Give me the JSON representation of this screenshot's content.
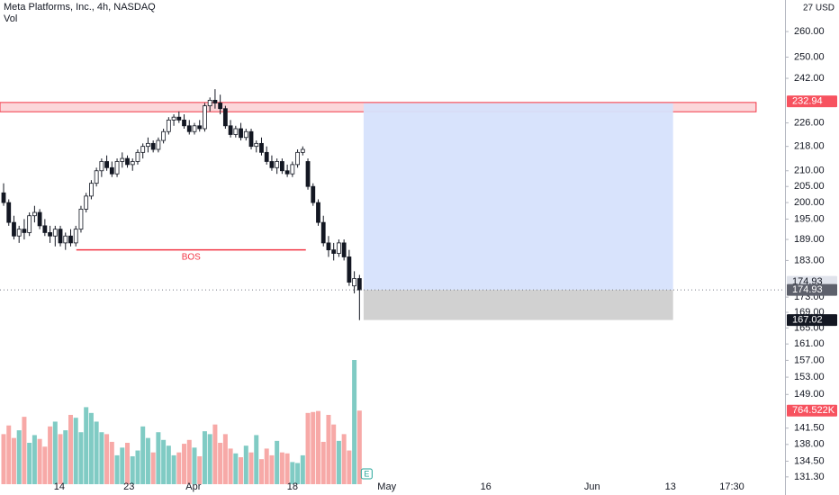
{
  "chart_data": {
    "type": "candlestick",
    "title": "Meta Platforms, Inc., 4h, NASDAQ",
    "volume_title": "Vol",
    "currency": "27 USD",
    "log_scale": true,
    "ylim": [
      127.7,
      272.9
    ],
    "yticks": [
      {
        "value": 260,
        "label": "260.00"
      },
      {
        "value": 250,
        "label": "250.00"
      },
      {
        "value": 242,
        "label": "242.00"
      },
      {
        "value": 226,
        "label": "226.00"
      },
      {
        "value": 218,
        "label": "218.00"
      },
      {
        "value": 210,
        "label": "210.00"
      },
      {
        "value": 205,
        "label": "205.00"
      },
      {
        "value": 200,
        "label": "200.00"
      },
      {
        "value": 195,
        "label": "195.00"
      },
      {
        "value": 189,
        "label": "189.00"
      },
      {
        "value": 183,
        "label": "183.00"
      },
      {
        "value": 173,
        "label": "173.00"
      },
      {
        "value": 169,
        "label": "169.00"
      },
      {
        "value": 165,
        "label": "165.00"
      },
      {
        "value": 161,
        "label": "161.00"
      },
      {
        "value": 157,
        "label": "157.00"
      },
      {
        "value": 153,
        "label": "153.00"
      },
      {
        "value": 149,
        "label": "149.00"
      },
      {
        "value": 141.5,
        "label": "141.50"
      },
      {
        "value": 138,
        "label": "138.00"
      },
      {
        "value": 134.5,
        "label": "134.50"
      },
      {
        "value": 131.3,
        "label": "131.30"
      }
    ],
    "xlim": [
      -0.7,
      151.5
    ],
    "xticks": [
      {
        "value": 10.8,
        "label": "14"
      },
      {
        "value": 24.3,
        "label": "23"
      },
      {
        "value": 36.8,
        "label": "Apr"
      },
      {
        "value": 56,
        "label": "18"
      },
      {
        "value": 74.3,
        "label": "May"
      },
      {
        "value": 93.5,
        "label": "16"
      },
      {
        "value": 114.1,
        "label": "Jun"
      },
      {
        "value": 129.3,
        "label": "13"
      },
      {
        "value": 141.2,
        "label": "17:30"
      }
    ],
    "candles": {
      "open": [
        203,
        200,
        194,
        190,
        192,
        191,
        196,
        197,
        193,
        191,
        190,
        192,
        188,
        190,
        188,
        192,
        198,
        202,
        206,
        210,
        213,
        211,
        209,
        213,
        214,
        212,
        213,
        216,
        218,
        219,
        217,
        220,
        223,
        227,
        228,
        227,
        225,
        223,
        225,
        224,
        232,
        234,
        233,
        231,
        225,
        222,
        224,
        221,
        223,
        218,
        219,
        216,
        213,
        211,
        213,
        210,
        209,
        212,
        216,
        213,
        205,
        200,
        194,
        188,
        186,
        185,
        188,
        184,
        176,
        178
      ],
      "high": [
        206,
        201,
        196,
        193,
        195,
        197,
        199,
        198,
        195,
        193,
        193,
        193,
        191,
        192,
        193,
        199,
        203,
        207,
        211,
        214,
        215,
        213,
        214,
        216,
        215,
        214,
        217,
        219,
        221,
        220,
        221,
        224,
        228,
        229,
        230,
        229,
        227,
        226,
        227,
        233,
        235,
        238,
        236,
        232,
        227,
        225,
        226,
        224,
        224,
        220,
        221,
        218,
        215,
        214,
        214,
        212,
        213,
        217,
        218,
        214,
        206,
        201,
        196,
        190,
        188,
        189,
        189,
        186,
        180,
        179
      ],
      "low": [
        199,
        193,
        189,
        188,
        189,
        190,
        194,
        192,
        190,
        188,
        187,
        187,
        186,
        187,
        187,
        191,
        197,
        201,
        205,
        208,
        210,
        208,
        208,
        211,
        211,
        210,
        212,
        214,
        216,
        216,
        216,
        219,
        222,
        225,
        226,
        224,
        222,
        222,
        223,
        223,
        230,
        231,
        229,
        224,
        221,
        221,
        220,
        220,
        217,
        216,
        215,
        212,
        210,
        209,
        209,
        208,
        208,
        211,
        215,
        204,
        199,
        193,
        187,
        184,
        183,
        184,
        183,
        176,
        174,
        167
      ],
      "close": [
        200,
        194,
        190,
        192,
        191,
        196,
        197,
        193,
        191,
        190,
        192,
        188,
        190,
        188,
        192,
        198,
        202,
        206,
        210,
        213,
        211,
        209,
        213,
        214,
        212,
        213,
        216,
        218,
        219,
        217,
        220,
        223,
        227,
        228,
        227,
        225,
        223,
        225,
        224,
        232,
        234,
        233,
        231,
        225,
        222,
        224,
        221,
        223,
        218,
        219,
        216,
        213,
        211,
        213,
        210,
        209,
        212,
        216,
        217,
        205,
        200,
        194,
        188,
        186,
        185,
        188,
        184,
        177,
        178,
        174.93
      ]
    },
    "up_color": "#ffffff",
    "down_color": "#131722",
    "wick_color": "#131722",
    "volume": {
      "values": [
        520000,
        610000,
        480000,
        560000,
        700000,
        430000,
        510000,
        470000,
        390000,
        600000,
        650000,
        520000,
        560000,
        720000,
        690000,
        540000,
        800000,
        740000,
        650000,
        540000,
        520000,
        440000,
        300000,
        380000,
        430000,
        290000,
        350000,
        600000,
        480000,
        330000,
        540000,
        460000,
        400000,
        300000,
        330000,
        420000,
        460000,
        380000,
        290000,
        550000,
        520000,
        620000,
        430000,
        520000,
        370000,
        320000,
        280000,
        400000,
        330000,
        510000,
        260000,
        370000,
        300000,
        450000,
        330000,
        320000,
        230000,
        220000,
        300000,
        740000,
        750000,
        760000,
        440000,
        720000,
        620000,
        450000,
        520000,
        350000,
        1290000,
        764522
      ],
      "value_labels": [
        null,
        null,
        null,
        null,
        null,
        null,
        null,
        null,
        null,
        null,
        null,
        null,
        null,
        null,
        null,
        null,
        null,
        null,
        null,
        null,
        null,
        null,
        null,
        null,
        null,
        null,
        null,
        null,
        null,
        null,
        null,
        null,
        null,
        null,
        null,
        null,
        null,
        null,
        null,
        null,
        null,
        null,
        null,
        null,
        null,
        null,
        null,
        null,
        null,
        null,
        null,
        null,
        null,
        null,
        null,
        null,
        null,
        null,
        null,
        null,
        null,
        null,
        null,
        null,
        null,
        null,
        null,
        null,
        null,
        "764.522K"
      ],
      "up_color": "#80cbc4",
      "down_color": "#f7a9a7"
    },
    "zone": {
      "top": 233.2,
      "bottom": 229.9,
      "x_start": -0.7,
      "x_end": 145.9,
      "color": "#f23645"
    },
    "position": {
      "entry": 174.93,
      "target": 232.94,
      "stop": 167.02,
      "x_start": 69.8,
      "x_end": 129.8,
      "profit_color": "#d6e2fc",
      "loss_color": "#d1d1d1"
    },
    "bos": {
      "label": "BOS",
      "price": 186,
      "x_start": 14.1,
      "x_end": 58.6,
      "color": "#f23645"
    },
    "earnings_marker": "E"
  }
}
